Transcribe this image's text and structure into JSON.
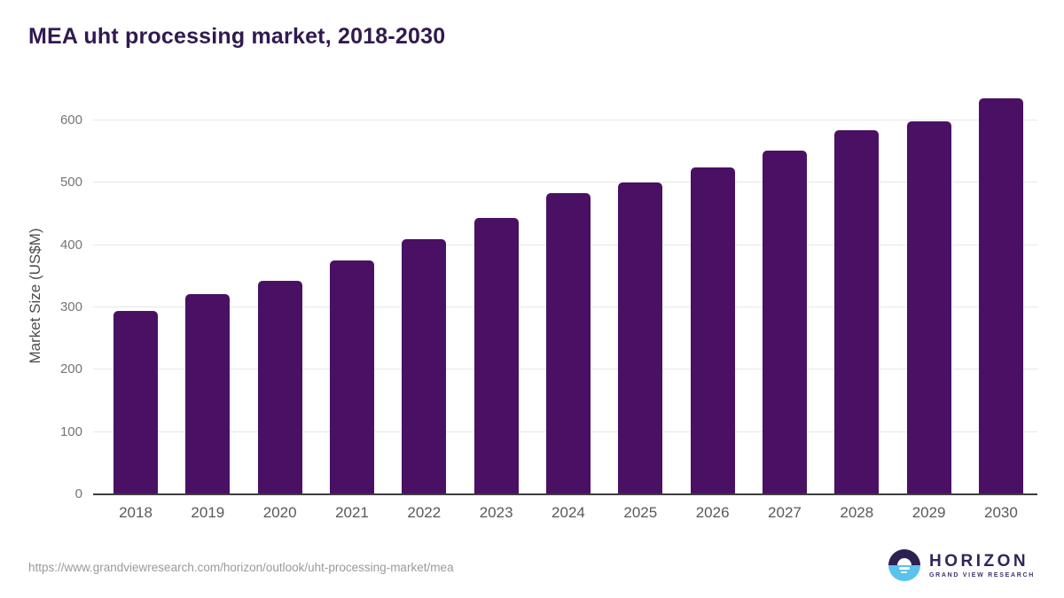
{
  "title": "MEA uht processing market, 2018-2030",
  "chart_data": {
    "type": "bar",
    "title": "MEA uht processing market, 2018-2030",
    "categories": [
      "2018",
      "2019",
      "2020",
      "2021",
      "2022",
      "2023",
      "2024",
      "2025",
      "2026",
      "2027",
      "2028",
      "2029",
      "2030"
    ],
    "values": [
      295,
      321,
      342,
      375,
      409,
      444,
      484,
      501,
      525,
      552,
      585,
      598,
      635
    ],
    "xlabel": "",
    "ylabel": "Market Size (US$M)",
    "yticks": [
      0,
      100,
      200,
      300,
      400,
      500,
      600
    ],
    "ylim": [
      0,
      637
    ],
    "grid": true,
    "legend": false,
    "bar_color": "#4a1064"
  },
  "colors": {
    "bar": "#4a1064",
    "title": "#301a4f",
    "axis_text": "#595959",
    "tick_text": "#757575",
    "gridline": "#e7e7e7",
    "axis_line": "#3d3d3d",
    "url_text": "#9a9a9a",
    "logo_purple": "#2d2150",
    "logo_blue": "#5bc2ee"
  },
  "footer": {
    "source_url": "https://www.grandviewresearch.com/horizon/outlook/uht-processing-market/mea",
    "logo": {
      "name": "HORIZON",
      "subtitle": "GRAND VIEW RESEARCH"
    }
  }
}
